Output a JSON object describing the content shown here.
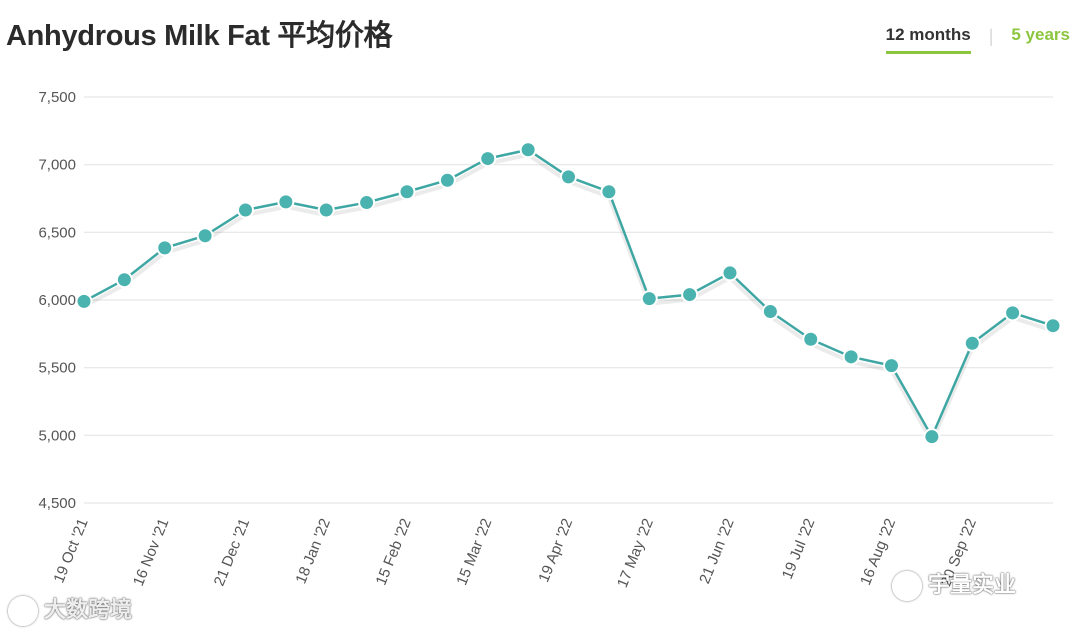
{
  "header": {
    "title": "Anhydrous Milk Fat 平均价格",
    "tabs": [
      {
        "label": "12 months",
        "active": true
      },
      {
        "label": "5 years",
        "active": false
      }
    ]
  },
  "watermarks": {
    "left": "大数跨境",
    "right": "宇量实业"
  },
  "colors": {
    "line": "#3fa7a3",
    "marker_fill": "#4ab3af",
    "grid": "#e6e6e6",
    "accent": "#8cc63f"
  },
  "chart_data": {
    "type": "line",
    "title": "Anhydrous Milk Fat 平均价格",
    "xlabel": "",
    "ylabel": "",
    "ylim": [
      4500,
      7500
    ],
    "yticks": [
      4500,
      5000,
      5500,
      6000,
      6500,
      7000,
      7500
    ],
    "ytick_labels": [
      "4,500",
      "5,000",
      "5,500",
      "6,000",
      "6,500",
      "7,000",
      "7,500"
    ],
    "x_tick_labels": [
      {
        "index": 0,
        "label": "19 Oct '21"
      },
      {
        "index": 2,
        "label": "16 Nov '21"
      },
      {
        "index": 4,
        "label": "21 Dec '21"
      },
      {
        "index": 6,
        "label": "18 Jan '22"
      },
      {
        "index": 8,
        "label": "15 Feb '22"
      },
      {
        "index": 10,
        "label": "15 Mar '22"
      },
      {
        "index": 12,
        "label": "19 Apr '22"
      },
      {
        "index": 14,
        "label": "17 May '22"
      },
      {
        "index": 16,
        "label": "21 Jun '22"
      },
      {
        "index": 18,
        "label": "19 Jul '22"
      },
      {
        "index": 20,
        "label": "16 Aug '22"
      },
      {
        "index": 22,
        "label": "20 Sep '22"
      }
    ],
    "grid": true,
    "legend": "none",
    "series": [
      {
        "values": [
          5990,
          6150,
          6385,
          6475,
          6665,
          6725,
          6665,
          6720,
          6800,
          6885,
          7045,
          7110,
          6910,
          6800,
          6010,
          6040,
          6200,
          5915,
          5710,
          5580,
          5515,
          4990,
          5680,
          5905,
          5810
        ]
      }
    ]
  }
}
